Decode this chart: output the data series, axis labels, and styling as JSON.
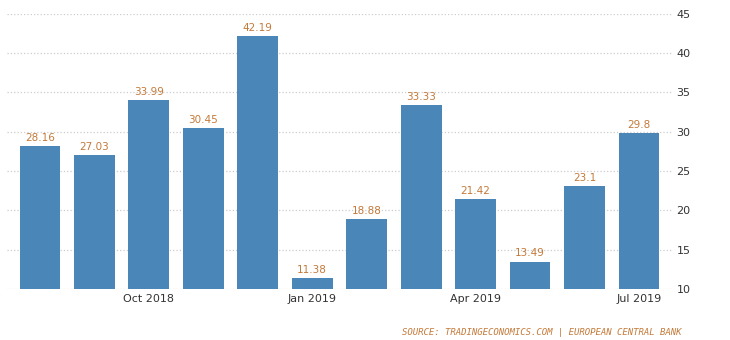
{
  "x_tick_labels": [
    "Oct 2018",
    "Jan 2019",
    "Apr 2019",
    "Jul 2019"
  ],
  "x_tick_positions": [
    2,
    5,
    8,
    11
  ],
  "values": [
    28.16,
    27.03,
    33.99,
    30.45,
    42.19,
    11.38,
    18.88,
    33.33,
    21.42,
    13.49,
    23.1,
    29.8
  ],
  "bar_color": "#4a86b8",
  "value_color": "#c47a3a",
  "ylim_min": 10,
  "ylim_max": 45,
  "yticks": [
    10,
    15,
    20,
    25,
    30,
    35,
    40,
    45
  ],
  "grid_color": "#cccccc",
  "background_color": "#ffffff",
  "source_text": "SOURCE: TRADINGECONOMICS.COM | EUROPEAN CENTRAL BANK",
  "source_color": "#c47a3a",
  "source_fontsize": 6.5,
  "value_fontsize": 7.5,
  "tick_fontsize": 8.0
}
